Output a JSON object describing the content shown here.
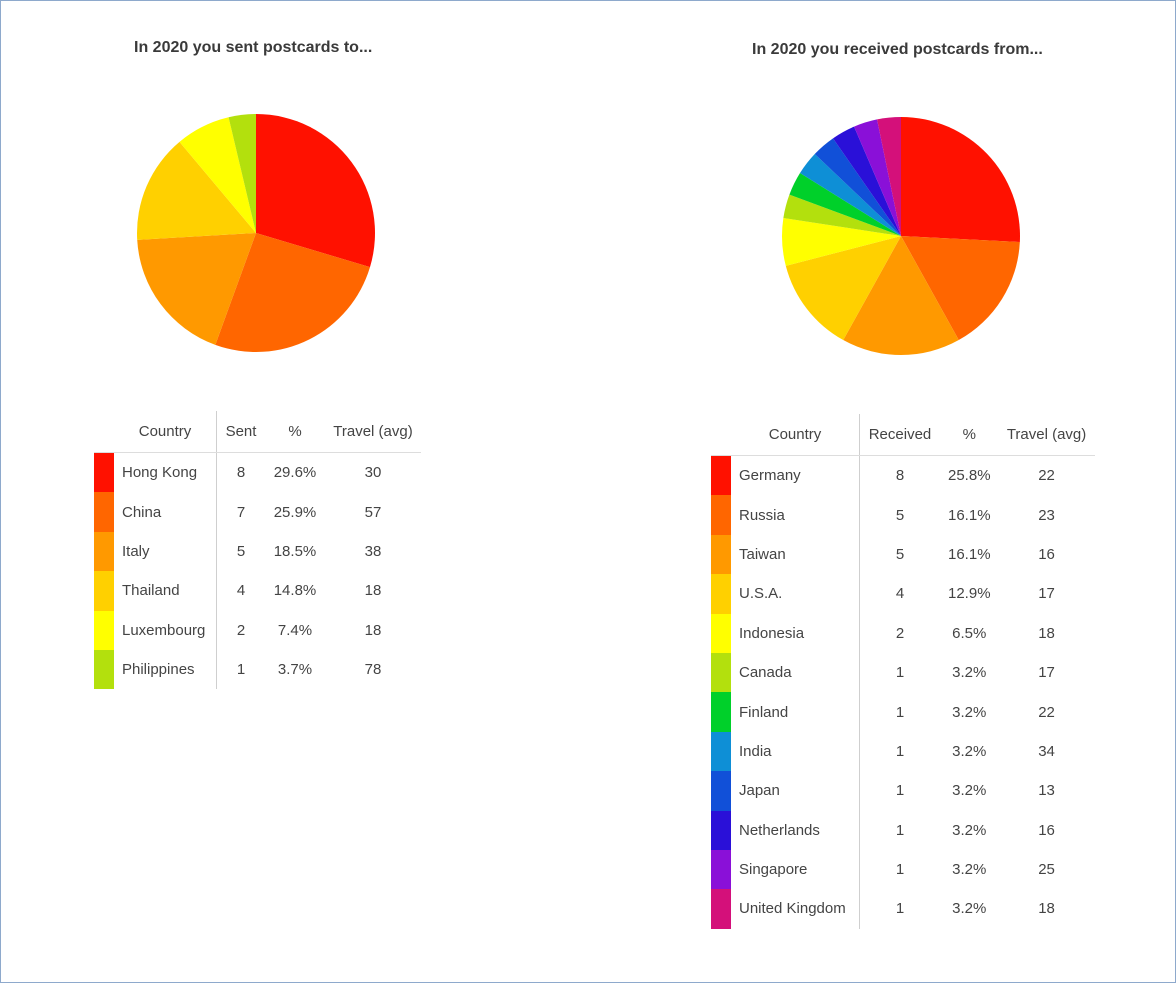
{
  "sent": {
    "title": "In 2020 you sent postcards to...",
    "headers": {
      "country": "Country",
      "count": "Sent",
      "pct": "%",
      "travel": "Travel (avg)"
    },
    "rows": [
      {
        "country": "Hong Kong",
        "count": "8",
        "pct": "29.6%",
        "travel": "30",
        "color": "#ff1100"
      },
      {
        "country": "China",
        "count": "7",
        "pct": "25.9%",
        "travel": "57",
        "color": "#ff6600"
      },
      {
        "country": "Italy",
        "count": "5",
        "pct": "18.5%",
        "travel": "38",
        "color": "#ff9900"
      },
      {
        "country": "Thailand",
        "count": "4",
        "pct": "14.8%",
        "travel": "18",
        "color": "#ffd000"
      },
      {
        "country": "Luxembourg",
        "count": "2",
        "pct": "7.4%",
        "travel": "18",
        "color": "#ffff00"
      },
      {
        "country": "Philippines",
        "count": "1",
        "pct": "3.7%",
        "travel": "78",
        "color": "#b3e00d"
      }
    ]
  },
  "received": {
    "title": "In 2020 you received postcards from...",
    "headers": {
      "country": "Country",
      "count": "Received",
      "pct": "%",
      "travel": "Travel (avg)"
    },
    "rows": [
      {
        "country": "Germany",
        "count": "8",
        "pct": "25.8%",
        "travel": "22",
        "color": "#ff1100"
      },
      {
        "country": "Russia",
        "count": "5",
        "pct": "16.1%",
        "travel": "23",
        "color": "#ff6600"
      },
      {
        "country": "Taiwan",
        "count": "5",
        "pct": "16.1%",
        "travel": "16",
        "color": "#ff9900"
      },
      {
        "country": "U.S.A.",
        "count": "4",
        "pct": "12.9%",
        "travel": "17",
        "color": "#ffd000"
      },
      {
        "country": "Indonesia",
        "count": "2",
        "pct": "6.5%",
        "travel": "18",
        "color": "#ffff00"
      },
      {
        "country": "Canada",
        "count": "1",
        "pct": "3.2%",
        "travel": "17",
        "color": "#b3e00d"
      },
      {
        "country": "Finland",
        "count": "1",
        "pct": "3.2%",
        "travel": "22",
        "color": "#00d02a"
      },
      {
        "country": "India",
        "count": "1",
        "pct": "3.2%",
        "travel": "34",
        "color": "#0e8fd6"
      },
      {
        "country": "Japan",
        "count": "1",
        "pct": "3.2%",
        "travel": "13",
        "color": "#1150d8"
      },
      {
        "country": "Netherlands",
        "count": "1",
        "pct": "3.2%",
        "travel": "16",
        "color": "#2a10d8"
      },
      {
        "country": "Singapore",
        "count": "1",
        "pct": "3.2%",
        "travel": "25",
        "color": "#8a10d8"
      },
      {
        "country": "United Kingdom",
        "count": "1",
        "pct": "3.2%",
        "travel": "18",
        "color": "#d4107a"
      }
    ]
  },
  "chart_data": [
    {
      "type": "pie",
      "title": "In 2020 you sent postcards to...",
      "categories": [
        "Hong Kong",
        "China",
        "Italy",
        "Thailand",
        "Luxembourg",
        "Philippines"
      ],
      "values": [
        8,
        7,
        5,
        4,
        2,
        1
      ],
      "colors": [
        "#ff1100",
        "#ff6600",
        "#ff9900",
        "#ffd000",
        "#ffff00",
        "#b3e00d"
      ]
    },
    {
      "type": "pie",
      "title": "In 2020 you received postcards from...",
      "categories": [
        "Germany",
        "Russia",
        "Taiwan",
        "U.S.A.",
        "Indonesia",
        "Canada",
        "Finland",
        "India",
        "Japan",
        "Netherlands",
        "Singapore",
        "United Kingdom"
      ],
      "values": [
        8,
        5,
        5,
        4,
        2,
        1,
        1,
        1,
        1,
        1,
        1,
        1
      ],
      "colors": [
        "#ff1100",
        "#ff6600",
        "#ff9900",
        "#ffd000",
        "#ffff00",
        "#b3e00d",
        "#00d02a",
        "#0e8fd6",
        "#1150d8",
        "#2a10d8",
        "#8a10d8",
        "#d4107a"
      ]
    }
  ]
}
